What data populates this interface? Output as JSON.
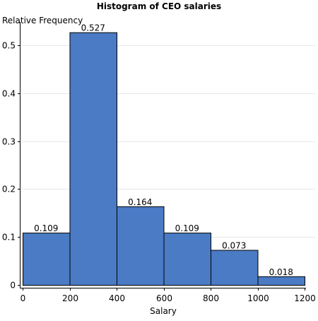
{
  "chart_data": {
    "type": "bar",
    "title": "Histogram of CEO salaries",
    "xlabel": "Salary",
    "ylabel": "Relative Frequency",
    "bins": [
      {
        "start": 0,
        "end": 200,
        "value": 0.109,
        "label": "0.109"
      },
      {
        "start": 200,
        "end": 400,
        "value": 0.527,
        "label": "0.527"
      },
      {
        "start": 400,
        "end": 600,
        "value": 0.164,
        "label": "0.164"
      },
      {
        "start": 600,
        "end": 800,
        "value": 0.109,
        "label": "0.109"
      },
      {
        "start": 800,
        "end": 1000,
        "value": 0.073,
        "label": "0.073"
      },
      {
        "start": 1000,
        "end": 1200,
        "value": 0.018,
        "label": "0.018"
      }
    ],
    "xlim": [
      0,
      1200
    ],
    "ylim": [
      0,
      0.55
    ],
    "x_ticks": [
      0,
      200,
      400,
      600,
      800,
      1000,
      1200
    ],
    "y_ticks": [
      0,
      0.1,
      0.2,
      0.3,
      0.4,
      0.5
    ],
    "y_tick_labels": [
      "0",
      "0.1",
      "0.2",
      "0.3",
      "0.4",
      "0.5"
    ],
    "grid": true,
    "bar_color": "#4a7bc4",
    "bar_edge_color": "#000000",
    "grid_color": "#e6e6e6"
  }
}
